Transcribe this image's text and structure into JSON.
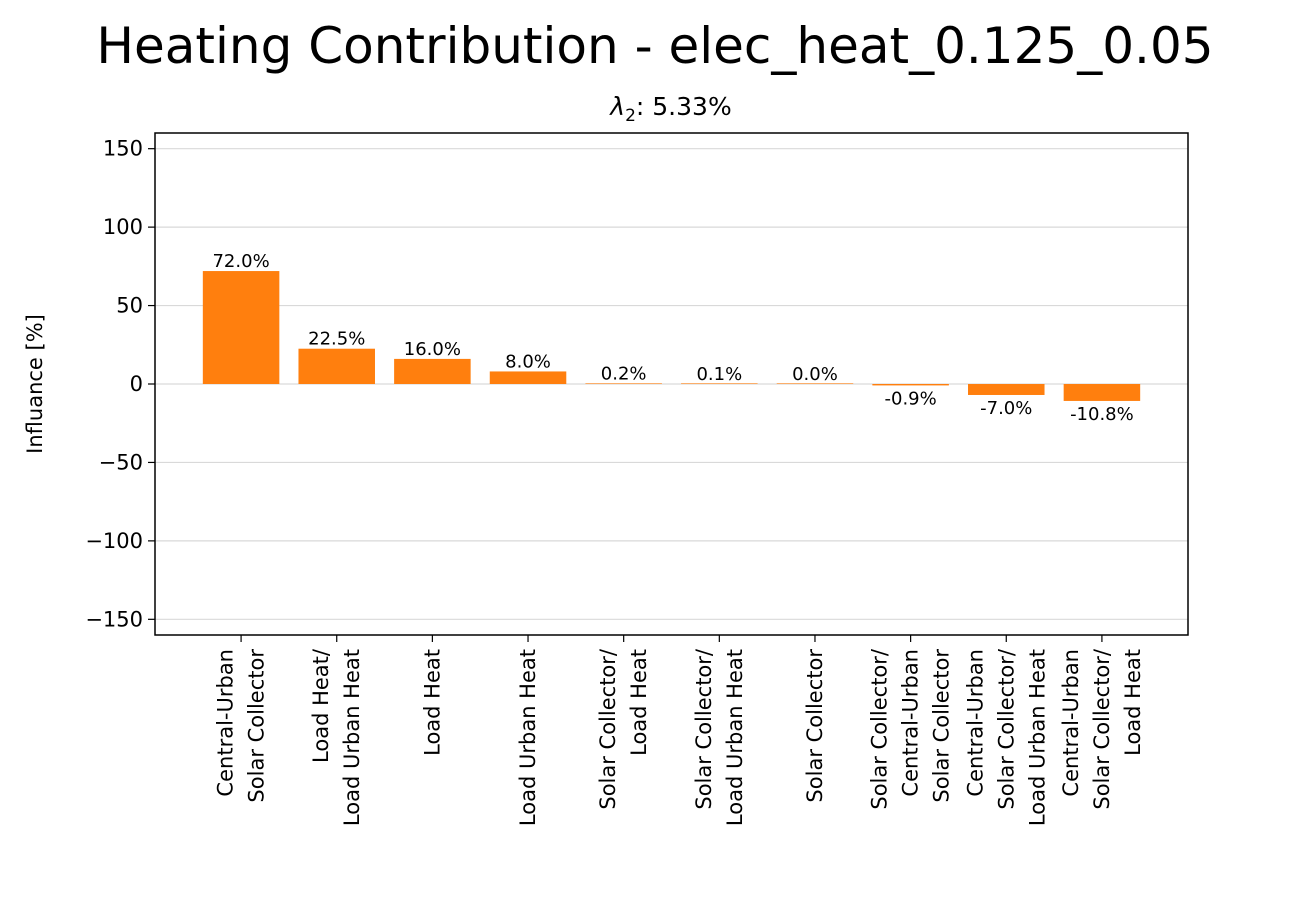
{
  "chart_data": {
    "type": "bar",
    "title": "Heating Contribution - elec_heat_0.125_0.05",
    "subtitle_symbol": "λ",
    "subtitle_subscript": "2",
    "subtitle_value": ": 5.33%",
    "ylabel": "Influance [%]",
    "xlabel": "",
    "ylim": [
      -160,
      160
    ],
    "yticks": [
      -150,
      -100,
      -50,
      0,
      50,
      100,
      150
    ],
    "ytick_labels": [
      "−150",
      "−100",
      "−50",
      "0",
      "50",
      "100",
      "150"
    ],
    "grid": "horizontal",
    "legend": "none",
    "bar_color": "#ff7f0e",
    "grid_color": "#d9d9d9",
    "categories": [
      [
        "Central-Urban",
        "Solar Collector"
      ],
      [
        "Load Heat/",
        "Load Urban Heat"
      ],
      [
        "Load Heat"
      ],
      [
        "Load Urban Heat"
      ],
      [
        "Solar Collector/",
        "Load Heat"
      ],
      [
        "Solar Collector/",
        "Load Urban Heat"
      ],
      [
        "Solar Collector"
      ],
      [
        "Solar Collector/",
        "Central-Urban",
        "Solar Collector"
      ],
      [
        "Central-Urban",
        "Solar Collector/",
        "Load Urban Heat"
      ],
      [
        "Central-Urban",
        "Solar Collector/",
        "Load Heat"
      ]
    ],
    "values": [
      72.0,
      22.5,
      16.0,
      8.0,
      0.2,
      0.1,
      0.0,
      -0.9,
      -7.0,
      -10.8
    ],
    "value_labels": [
      "72.0%",
      "22.5%",
      "16.0%",
      "8.0%",
      "0.2%",
      "0.1%",
      "0.0%",
      "-0.9%",
      "-7.0%",
      "-10.8%"
    ]
  }
}
